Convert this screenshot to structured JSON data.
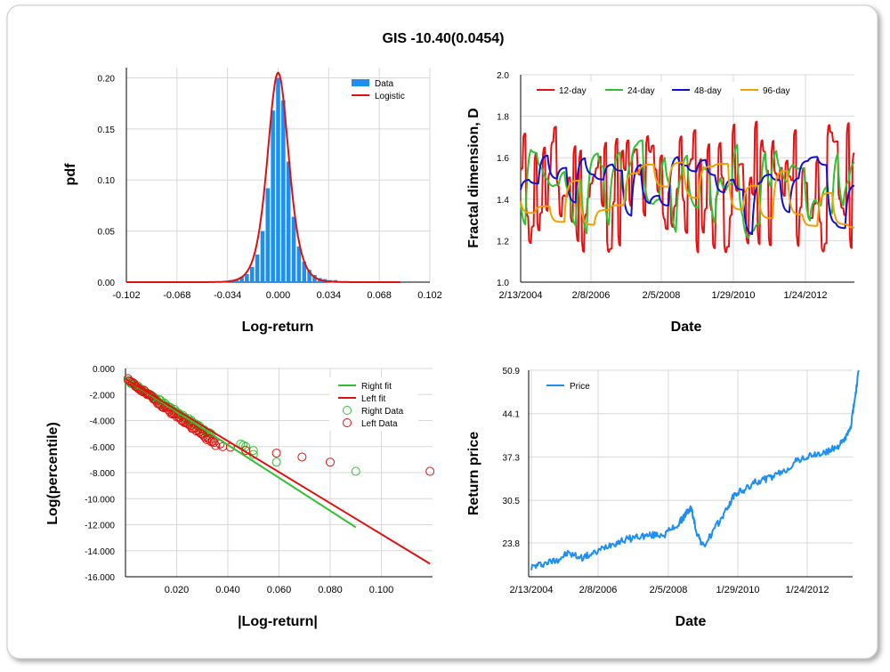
{
  "title": "GIS -10.40(0.0454)",
  "colors": {
    "data_blue": "#1e8ff0",
    "logistic_red": "#e01010",
    "d12": "#e81010",
    "d24": "#30c030",
    "d48": "#1010d0",
    "d96": "#f0a000",
    "right_green": "#30c030",
    "left_red": "#e01010",
    "price_blue": "#1e8ff0",
    "grid": "#d8d8d8"
  },
  "chart_data": [
    {
      "id": "pdf",
      "type": "bar",
      "xlabel": "Log-return",
      "ylabel": "pdf",
      "xlim": [
        -0.102,
        0.102
      ],
      "ylim": [
        0,
        0.21
      ],
      "xticks": [
        "-0.102",
        "-0.068",
        "-0.034",
        "0.000",
        "0.034",
        "0.068",
        "0.102"
      ],
      "yticks": [
        "0.00",
        "0.05",
        "0.10",
        "0.15",
        "0.20"
      ],
      "legend": [
        "Data",
        "Logistic"
      ],
      "legend_position": "top-right",
      "bins": [
        -0.035,
        -0.0315,
        -0.028,
        -0.0245,
        -0.021,
        -0.0175,
        -0.014,
        -0.0105,
        -0.007,
        -0.0035,
        0.0,
        0.0035,
        0.007,
        0.0105,
        0.014,
        0.0175,
        0.021,
        0.0245,
        0.028,
        0.0315,
        0.035,
        0.0385,
        0.042,
        0.0455
      ],
      "values": [
        0.001,
        0.002,
        0.003,
        0.005,
        0.008,
        0.015,
        0.027,
        0.05,
        0.092,
        0.168,
        0.2,
        0.178,
        0.118,
        0.064,
        0.035,
        0.02,
        0.012,
        0.007,
        0.004,
        0.003,
        0.002,
        0.002,
        0.001,
        0.001
      ],
      "fit": {
        "name": "Logistic",
        "peak": 0.205,
        "center": 0.0,
        "scale": 0.0048
      }
    },
    {
      "id": "fractal",
      "type": "line",
      "xlabel": "Date",
      "ylabel": "Fractal dimension, D",
      "xticks": [
        "2/13/2004",
        "2/8/2006",
        "2/5/2008",
        "1/29/2010",
        "1/24/2012"
      ],
      "yticks": [
        "1.0",
        "1.2",
        "1.4",
        "1.6",
        "1.8",
        "2.0"
      ],
      "ylim": [
        1.0,
        2.0
      ],
      "legend_position": "top-left",
      "series": [
        {
          "name": "12-day",
          "mean": 1.45,
          "amp": 0.33,
          "period": 3,
          "seed": 11
        },
        {
          "name": "24-day",
          "mean": 1.45,
          "amp": 0.25,
          "period": 6,
          "seed": 23
        },
        {
          "name": "48-day",
          "mean": 1.42,
          "amp": 0.2,
          "period": 10,
          "seed": 37
        },
        {
          "name": "96-day",
          "mean": 1.42,
          "amp": 0.17,
          "period": 16,
          "seed": 51
        }
      ]
    },
    {
      "id": "tail",
      "type": "scatter",
      "xlabel": "|Log-return|",
      "ylabel": "Log(percentile)",
      "xlim": [
        0,
        0.12
      ],
      "ylim": [
        -16,
        0
      ],
      "xticks": [
        "0.020",
        "0.040",
        "0.060",
        "0.080",
        "0.100"
      ],
      "yticks": [
        "0.000",
        "-2.000",
        "-4.000",
        "-6.000",
        "-8.000",
        "-10.000",
        "-12.000",
        "-14.000",
        "-16.000"
      ],
      "legend": [
        "Right fit",
        "Left fit",
        "Right Data",
        "Left Data"
      ],
      "legend_position": "top-right",
      "right_fit": [
        [
          0.0,
          -0.8
        ],
        [
          0.09,
          -12.2
        ]
      ],
      "left_fit": [
        [
          0.0,
          -0.8
        ],
        [
          0.119,
          -15.0
        ]
      ],
      "right_outliers": [
        [
          0.045,
          -5.8
        ],
        [
          0.046,
          -5.9
        ],
        [
          0.047,
          -6.0
        ],
        [
          0.05,
          -6.3
        ],
        [
          0.05,
          -6.6
        ],
        [
          0.059,
          -7.2
        ],
        [
          0.09,
          -7.9
        ]
      ],
      "left_outliers": [
        [
          0.037,
          -5.8
        ],
        [
          0.038,
          -6.0
        ],
        [
          0.041,
          -6.05
        ],
        [
          0.047,
          -6.3
        ],
        [
          0.059,
          -6.5
        ],
        [
          0.069,
          -6.8
        ],
        [
          0.08,
          -7.2
        ],
        [
          0.119,
          -7.9
        ]
      ]
    },
    {
      "id": "price",
      "type": "line",
      "xlabel": "Date",
      "ylabel": "Return price",
      "xticks": [
        "2/13/2004",
        "2/8/2006",
        "2/5/2008",
        "1/29/2010",
        "1/24/2012"
      ],
      "yticks": [
        "23.8",
        "30.5",
        "37.3",
        "44.1",
        "50.9"
      ],
      "ylim": [
        18.5,
        50.9
      ],
      "legend": [
        "Price"
      ],
      "legend_position": "top-left",
      "x": [
        2004.12,
        2004.5,
        2004.9,
        2005.2,
        2005.6,
        2006.0,
        2006.4,
        2006.8,
        2007.2,
        2007.6,
        2008.0,
        2008.4,
        2008.6,
        2008.75,
        2008.9,
        2009.1,
        2009.4,
        2009.7,
        2010.0,
        2010.3,
        2010.6,
        2011.0,
        2011.4,
        2011.8,
        2012.2,
        2012.6,
        2012.9,
        2013.1,
        2013.3,
        2013.45,
        2013.55
      ],
      "values": [
        20.0,
        20.6,
        21.2,
        22.2,
        21.5,
        22.2,
        23.5,
        24.2,
        24.8,
        25.0,
        25.2,
        26.8,
        28.4,
        29.3,
        25.6,
        23.2,
        25.8,
        28.5,
        31.5,
        32.2,
        33.4,
        34.0,
        35.0,
        36.8,
        37.5,
        38.0,
        38.8,
        39.7,
        41.5,
        47.0,
        50.9
      ]
    }
  ]
}
